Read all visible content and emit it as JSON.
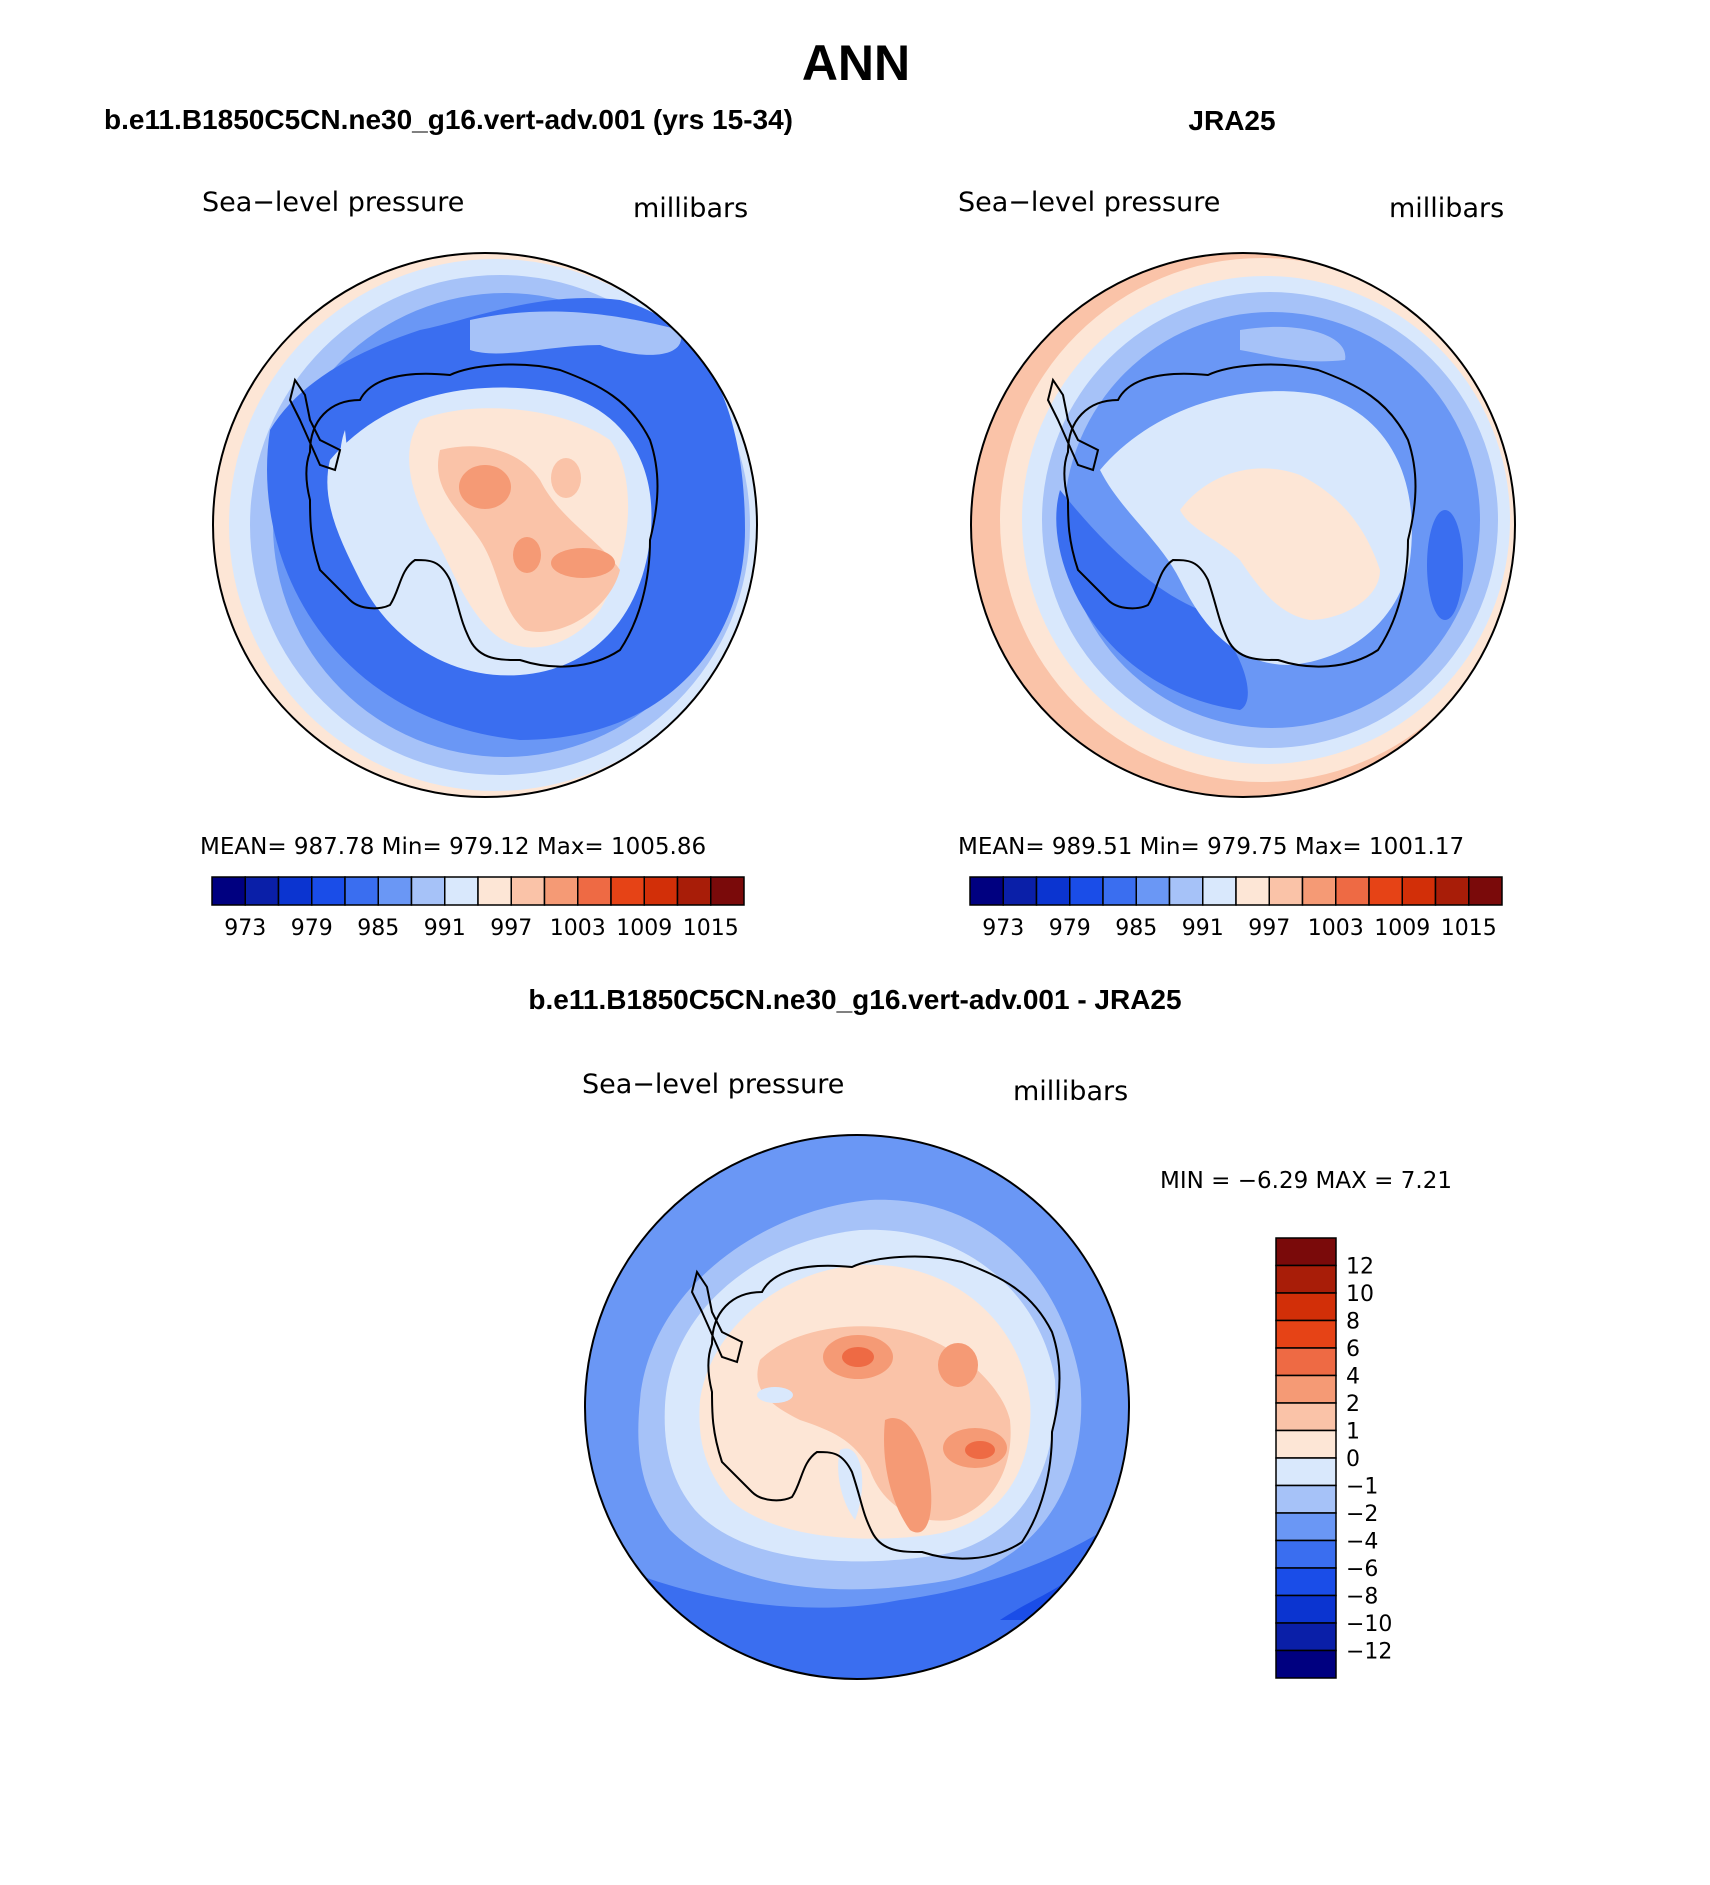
{
  "figure": {
    "title": "ANN",
    "panels": [
      {
        "heading": "b.e11.B1850C5CN.ne30_g16.vert-adv.001 (yrs 15-34)",
        "left_label": "Sea−level pressure",
        "right_label": "millibars",
        "stats": "MEAN=  987.78   Min=  979.12   Max=  1005.86",
        "colorbar_labels": [
          "973",
          "979",
          "985",
          "991",
          "997",
          "1003",
          "1009",
          "1015"
        ]
      },
      {
        "heading": "JRA25",
        "left_label": "Sea−level pressure",
        "right_label": "millibars",
        "stats": "MEAN=  989.51   Min=  979.75   Max=  1001.17",
        "colorbar_labels": [
          "973",
          "979",
          "985",
          "991",
          "997",
          "1003",
          "1009",
          "1015"
        ]
      },
      {
        "heading": "b.e11.B1850C5CN.ne30_g16.vert-adv.001 - JRA25",
        "left_label": "Sea−level pressure",
        "right_label": "millibars",
        "stats": "MIN =    −6.29  MAX =     7.21",
        "colorbar_labels": [
          "12",
          "10",
          "8",
          "6",
          "4",
          "2",
          "1",
          "0",
          "−1",
          "−2",
          "−4",
          "−6",
          "−8",
          "−10",
          "−12"
        ]
      }
    ],
    "colors": {
      "pressure_scale": [
        "#000080",
        "#0a1fa8",
        "#0b34d0",
        "#1a4de8",
        "#3a6ef0",
        "#6a97f5",
        "#a6c2f8",
        "#d9e8fc",
        "#fde6d6",
        "#fac3a8",
        "#f59a75",
        "#ee6a44",
        "#e64316",
        "#d22f08",
        "#a81d08",
        "#7a0a0a"
      ],
      "difference_scale": [
        "#7a0a0a",
        "#a81d08",
        "#d22f08",
        "#e64316",
        "#ee6a44",
        "#f59a75",
        "#fac3a8",
        "#fde6d6",
        "#d9e8fc",
        "#a6c2f8",
        "#6a97f5",
        "#3a6ef0",
        "#1a4de8",
        "#0b34d0",
        "#0a1fa8",
        "#000080"
      ]
    }
  }
}
